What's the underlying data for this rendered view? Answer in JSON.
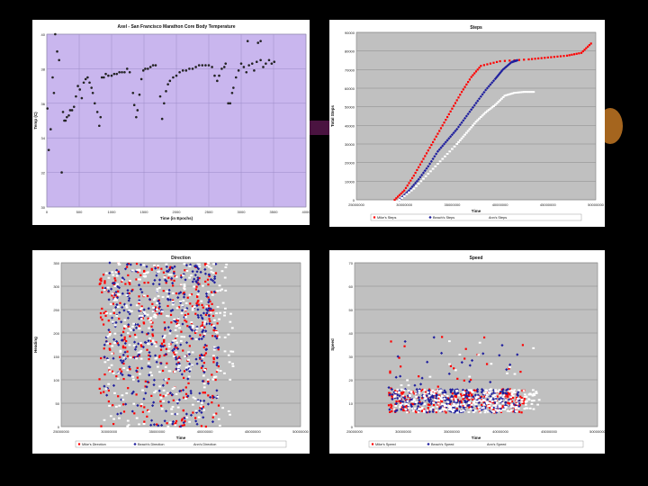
{
  "colors": {
    "background": "#000000",
    "plot_gray": "#c0c0c0",
    "lavender": "#c9b6ee",
    "red": "#ff0000",
    "blue": "#1f1f9e",
    "white": "#ffffff",
    "black_marker": "#222222",
    "accent_bar": "#4a1340",
    "accent_circle": "#a5651e"
  },
  "chart_data": [
    {
      "type": "scatter",
      "title": "Axel - San Francisco Marathon Core Body Temperature",
      "xlabel": "Time (in Epochs)",
      "ylabel": "Temp (C)",
      "xlim": [
        0,
        4000
      ],
      "ylim": [
        30,
        40
      ],
      "x_ticks": [
        "0",
        "500",
        "1000",
        "1500",
        "2000",
        "2500",
        "3000",
        "3500",
        "4000"
      ],
      "y_ticks": [
        "30",
        "32",
        "34",
        "36",
        "38",
        "40"
      ],
      "grid": true,
      "legend": "none",
      "series": [
        {
          "color": "black_marker",
          "points": [
            [
              10,
              35.7
            ],
            [
              30,
              33.3
            ],
            [
              60,
              34.5
            ],
            [
              90,
              37.5
            ],
            [
              110,
              36.6
            ],
            [
              130,
              40
            ],
            [
              160,
              39
            ],
            [
              190,
              38.5
            ],
            [
              230,
              32
            ],
            [
              250,
              35.5
            ],
            [
              270,
              35
            ],
            [
              290,
              35
            ],
            [
              310,
              35.2
            ],
            [
              340,
              35.3
            ],
            [
              360,
              35.6
            ],
            [
              390,
              35.6
            ],
            [
              420,
              35.8
            ],
            [
              450,
              36.4
            ],
            [
              480,
              37
            ],
            [
              510,
              36.8
            ],
            [
              540,
              36.3
            ],
            [
              570,
              37.2
            ],
            [
              600,
              37.4
            ],
            [
              630,
              37.5
            ],
            [
              660,
              37.2
            ],
            [
              690,
              36.9
            ],
            [
              710,
              36.6
            ],
            [
              740,
              36
            ],
            [
              780,
              35.5
            ],
            [
              810,
              34.7
            ],
            [
              830,
              35.2
            ],
            [
              850,
              37.5
            ],
            [
              880,
              37.5
            ],
            [
              910,
              37.7
            ],
            [
              950,
              37.6
            ],
            [
              1000,
              37.6
            ],
            [
              1040,
              37.7
            ],
            [
              1080,
              37.7
            ],
            [
              1120,
              37.8
            ],
            [
              1160,
              37.8
            ],
            [
              1200,
              37.8
            ],
            [
              1240,
              38
            ],
            [
              1280,
              37.8
            ],
            [
              1330,
              36.6
            ],
            [
              1350,
              35.9
            ],
            [
              1380,
              35.2
            ],
            [
              1400,
              35.6
            ],
            [
              1430,
              36.5
            ],
            [
              1460,
              37.4
            ],
            [
              1490,
              37.9
            ],
            [
              1520,
              38
            ],
            [
              1560,
              38
            ],
            [
              1600,
              38.1
            ],
            [
              1640,
              38.2
            ],
            [
              1680,
              38.2
            ],
            [
              1750,
              36.4
            ],
            [
              1780,
              35.1
            ],
            [
              1810,
              36
            ],
            [
              1840,
              36.7
            ],
            [
              1870,
              37.1
            ],
            [
              1900,
              37.3
            ],
            [
              1950,
              37.5
            ],
            [
              2000,
              37.6
            ],
            [
              2050,
              37.8
            ],
            [
              2100,
              37.9
            ],
            [
              2150,
              37.9
            ],
            [
              2200,
              38
            ],
            [
              2250,
              38
            ],
            [
              2300,
              38.1
            ],
            [
              2350,
              38.2
            ],
            [
              2400,
              38.2
            ],
            [
              2450,
              38.2
            ],
            [
              2500,
              38.2
            ],
            [
              2550,
              38.1
            ],
            [
              2590,
              37.6
            ],
            [
              2630,
              37.3
            ],
            [
              2660,
              37.6
            ],
            [
              2700,
              38
            ],
            [
              2740,
              38.1
            ],
            [
              2760,
              38.3
            ],
            [
              2800,
              36
            ],
            [
              2830,
              36
            ],
            [
              2860,
              36.6
            ],
            [
              2880,
              36.9
            ],
            [
              2920,
              37.5
            ],
            [
              2960,
              37.9
            ],
            [
              3000,
              38.3
            ],
            [
              3040,
              38.1
            ],
            [
              3080,
              37.8
            ],
            [
              3120,
              38.2
            ],
            [
              3170,
              38.3
            ],
            [
              3200,
              37.9
            ],
            [
              3240,
              38.4
            ],
            [
              3300,
              38.5
            ],
            [
              3340,
              38.1
            ],
            [
              3380,
              38.3
            ],
            [
              3430,
              38.5
            ],
            [
              3470,
              38.3
            ],
            [
              3510,
              38.4
            ],
            [
              3100,
              39.6
            ],
            [
              3260,
              39.5
            ],
            [
              3300,
              39.6
            ]
          ]
        }
      ]
    },
    {
      "type": "scatter",
      "title": "Steps",
      "xlabel": "Time",
      "ylabel": "Total Steps",
      "xlim": [
        25000000,
        50000000
      ],
      "ylim": [
        0,
        90000
      ],
      "x_ticks": [
        "25000000",
        "30000000",
        "35000000",
        "40000000",
        "45000000",
        "50000000"
      ],
      "y_ticks": [
        "0",
        "10000",
        "20000",
        "30000",
        "40000",
        "50000",
        "60000",
        "70000",
        "80000",
        "90000"
      ],
      "grid": true,
      "legend": "bottom",
      "series": [
        {
          "name": "Mike's Steps",
          "color": "red",
          "points": [
            [
              29000000,
              0
            ],
            [
              30000000,
              5000
            ],
            [
              31000000,
              13000
            ],
            [
              32000000,
              22000
            ],
            [
              33000000,
              31000
            ],
            [
              34000000,
              40000
            ],
            [
              35000000,
              49000
            ],
            [
              36000000,
              58000
            ],
            [
              37000000,
              66000
            ],
            [
              38000000,
              72000
            ],
            [
              40000000,
              74500
            ],
            [
              43000000,
              75500
            ],
            [
              45000000,
              76500
            ],
            [
              47000000,
              77500
            ],
            [
              48500000,
              79000
            ],
            [
              49500000,
              84000
            ]
          ]
        },
        {
          "name": "Beach's Steps",
          "color": "blue",
          "points": [
            [
              29500000,
              0
            ],
            [
              30500000,
              5000
            ],
            [
              31500000,
              11000
            ],
            [
              32500000,
              18000
            ],
            [
              33500000,
              26000
            ],
            [
              34500000,
              32000
            ],
            [
              35500000,
              38000
            ],
            [
              36500000,
              45000
            ],
            [
              37500000,
              52000
            ],
            [
              38500000,
              59000
            ],
            [
              39500000,
              65000
            ],
            [
              40300000,
              70000
            ],
            [
              41200000,
              74000
            ],
            [
              41800000,
              75000
            ]
          ]
        },
        {
          "name": "Ann's Steps",
          "color": "white",
          "points": [
            [
              29500000,
              0
            ],
            [
              31000000,
              6000
            ],
            [
              32500000,
              14000
            ],
            [
              34000000,
              22000
            ],
            [
              35500000,
              30000
            ],
            [
              36500000,
              36000
            ],
            [
              37500000,
              42000
            ],
            [
              38500000,
              47000
            ],
            [
              39500000,
              51000
            ],
            [
              40500000,
              56000
            ],
            [
              41500000,
              57500
            ],
            [
              42500000,
              58000
            ],
            [
              43500000,
              58000
            ]
          ]
        }
      ]
    },
    {
      "type": "scatter",
      "title": "Direction",
      "xlabel": "Time",
      "ylabel": "Heading",
      "xlim": [
        25000000,
        50000000
      ],
      "ylim": [
        0,
        360
      ],
      "x_ticks": [
        "25000000",
        "30000000",
        "35000000",
        "40000000",
        "45000000",
        "50000000"
      ],
      "y_ticks": [
        "0",
        "50",
        "100",
        "150",
        "200",
        "250",
        "300",
        "350"
      ],
      "grid": true,
      "legend": "bottom",
      "series": [
        {
          "name": "Mike's Direction",
          "color": "red"
        },
        {
          "name": "Beach's Direction",
          "color": "blue"
        },
        {
          "name": "Ann's Direction",
          "color": "white"
        }
      ]
    },
    {
      "type": "scatter",
      "title": "Speed",
      "xlabel": "Time",
      "ylabel": "Speed",
      "xlim": [
        25000000,
        50000000
      ],
      "ylim": [
        0,
        70
      ],
      "x_ticks": [
        "25000000",
        "30000000",
        "35000000",
        "40000000",
        "45000000",
        "50000000"
      ],
      "y_ticks": [
        "0",
        "10",
        "20",
        "30",
        "40",
        "50",
        "60",
        "70"
      ],
      "grid": true,
      "legend": "bottom",
      "series": [
        {
          "name": "Mike's Speed",
          "color": "red"
        },
        {
          "name": "Beach's Speed",
          "color": "blue"
        },
        {
          "name": "Ann's Speed",
          "color": "white"
        }
      ]
    }
  ]
}
